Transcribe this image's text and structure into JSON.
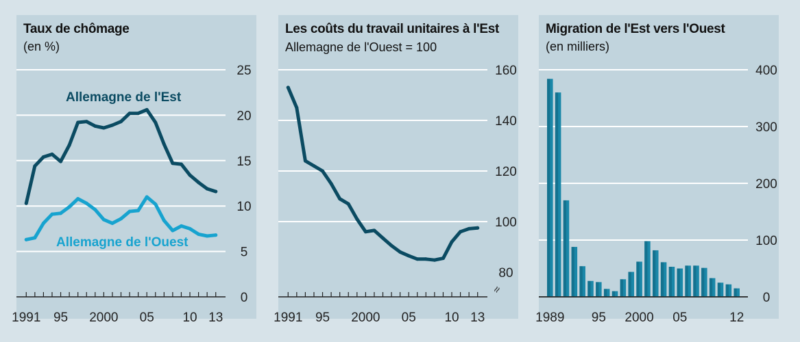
{
  "colors": {
    "dark": "#0b4b62",
    "light": "#17a3cf",
    "bar": "#1a87a8",
    "bar_dark": "#0b4b62",
    "grid": "#ffffff",
    "axis": "#222222",
    "panel": "#c1d4dd",
    "page": "#d7e3e9"
  },
  "chart_data": [
    {
      "type": "line",
      "title": "Taux de chômage",
      "subtitle": "(en %)",
      "ylim": [
        0,
        25
      ],
      "yticks": [
        0,
        5,
        10,
        15,
        20,
        25
      ],
      "xlim": [
        1990.5,
        2013.5
      ],
      "xtick_labels": [
        {
          "x": 1991,
          "label": "1991"
        },
        {
          "x": 1995,
          "label": "95"
        },
        {
          "x": 2000,
          "label": "2000"
        },
        {
          "x": 2005,
          "label": "05"
        },
        {
          "x": 2010,
          "label": "10"
        },
        {
          "x": 2013,
          "label": "13"
        }
      ],
      "grid": true,
      "series": [
        {
          "name": "Allemagne de l'Est",
          "color": "#0b4b62",
          "x": [
            1991,
            1992,
            1993,
            1994,
            1995,
            1996,
            1997,
            1998,
            1999,
            2000,
            2001,
            2002,
            2003,
            2004,
            2005,
            2006,
            2007,
            2008,
            2009,
            2010,
            2011,
            2012,
            2013
          ],
          "values": [
            10.3,
            14.4,
            15.4,
            15.7,
            14.9,
            16.7,
            19.2,
            19.3,
            18.8,
            18.6,
            18.9,
            19.3,
            20.2,
            20.2,
            20.6,
            19.2,
            16.8,
            14.7,
            14.6,
            13.4,
            12.6,
            11.9,
            11.6
          ]
        },
        {
          "name": "Allemagne de l'Ouest",
          "color": "#17a3cf",
          "x": [
            1991,
            1992,
            1993,
            1994,
            1995,
            1996,
            1997,
            1998,
            1999,
            2000,
            2001,
            2002,
            2003,
            2004,
            2005,
            2006,
            2007,
            2008,
            2009,
            2010,
            2011,
            2012,
            2013
          ],
          "values": [
            6.3,
            6.5,
            8.1,
            9.1,
            9.2,
            9.9,
            10.8,
            10.3,
            9.6,
            8.5,
            8.1,
            8.6,
            9.4,
            9.5,
            11.0,
            10.2,
            8.4,
            7.3,
            7.8,
            7.5,
            6.9,
            6.7,
            6.8
          ]
        }
      ]
    },
    {
      "type": "line",
      "title": "Les coûts du travail unitaires à l'Est",
      "subtitle": "Allemagne de l'Ouest = 100",
      "ylim": [
        80,
        160
      ],
      "yticks": [
        80,
        100,
        120,
        140,
        160
      ],
      "break_marker": "≈",
      "xlim": [
        1990.5,
        2013.5
      ],
      "xtick_labels": [
        {
          "x": 1991,
          "label": "1991"
        },
        {
          "x": 1995,
          "label": "95"
        },
        {
          "x": 2000,
          "label": "2000"
        },
        {
          "x": 2005,
          "label": "05"
        },
        {
          "x": 2010,
          "label": "10"
        },
        {
          "x": 2013,
          "label": "13"
        }
      ],
      "grid": true,
      "series": [
        {
          "color": "#0b4b62",
          "x": [
            1991,
            1992,
            1993,
            1994,
            1995,
            1996,
            1997,
            1998,
            1999,
            2000,
            2001,
            2002,
            2003,
            2004,
            2005,
            2006,
            2007,
            2008,
            2009,
            2010,
            2011,
            2012,
            2013
          ],
          "values": [
            153,
            145,
            124,
            122,
            120,
            115,
            109,
            107,
            101,
            96,
            96.5,
            93.5,
            90.5,
            88,
            86.5,
            85.2,
            85.2,
            84.8,
            85.5,
            92,
            96,
            97.2,
            97.5
          ]
        }
      ]
    },
    {
      "type": "bar",
      "title": "Migration de l'Est vers l'Ouest",
      "subtitle": "(en milliers)",
      "ylim": [
        0,
        400
      ],
      "yticks": [
        0,
        100,
        200,
        300,
        400
      ],
      "xlim": [
        1988.3,
        2012.7
      ],
      "xtick_labels": [
        {
          "x": 1989,
          "label": "1989"
        },
        {
          "x": 1995,
          "label": "95"
        },
        {
          "x": 2000,
          "label": "2000"
        },
        {
          "x": 2005,
          "label": "05"
        },
        {
          "x": 2012,
          "label": "12"
        }
      ],
      "grid": true,
      "categories": [
        1989,
        1990,
        1991,
        1992,
        1993,
        1994,
        1995,
        1996,
        1997,
        1998,
        1999,
        2000,
        2001,
        2002,
        2003,
        2004,
        2005,
        2006,
        2007,
        2008,
        2009,
        2010,
        2011,
        2012
      ],
      "values": [
        384,
        360,
        170,
        88,
        54,
        28,
        26,
        14,
        10,
        31,
        44,
        62,
        98,
        82,
        61,
        53,
        50,
        55,
        55,
        51,
        33,
        25,
        22,
        15
      ]
    }
  ]
}
